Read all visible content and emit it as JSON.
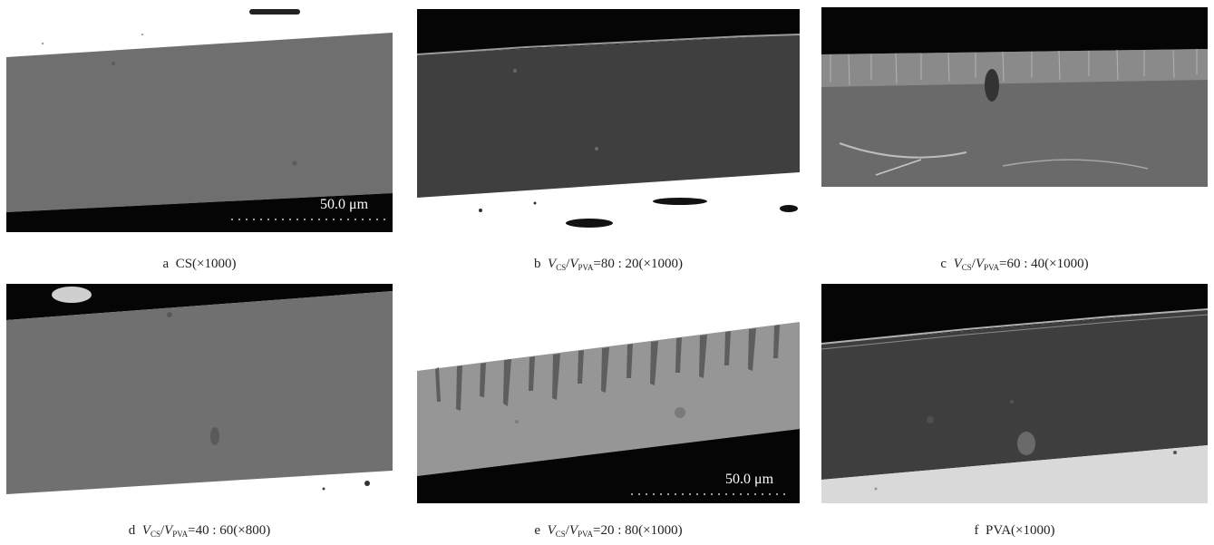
{
  "panels": [
    {
      "letter": "a",
      "caption_text": "CS(×1000)",
      "scale_bar": "50.0 μm"
    },
    {
      "letter": "b",
      "v1": "V",
      "sub1": "CS",
      "slash": "/",
      "v2": "V",
      "sub2": "PVA",
      "ratio": "=80 : 20(×1000)"
    },
    {
      "letter": "c",
      "v1": "V",
      "sub1": "CS",
      "slash": "/",
      "v2": "V",
      "sub2": "PVA",
      "ratio": "=60 : 40(×1000)"
    },
    {
      "letter": "d",
      "v1": "V",
      "sub1": "CS",
      "slash": "/",
      "v2": "V",
      "sub2": "PVA",
      "ratio": "=40 : 60(×800)"
    },
    {
      "letter": "e",
      "v1": "V",
      "sub1": "CS",
      "slash": "/",
      "v2": "V",
      "sub2": "PVA",
      "ratio": "=20 : 80(×1000)",
      "scale_bar": "50.0 μm"
    },
    {
      "letter": "f",
      "caption_text": "PVA(×1000)"
    }
  ],
  "colors": {
    "background": "#ffffff",
    "film_cs": "#6e6e6e",
    "film_dark": "#3e3e3e",
    "film_light": "#9a9a9a",
    "void": "#050505"
  }
}
